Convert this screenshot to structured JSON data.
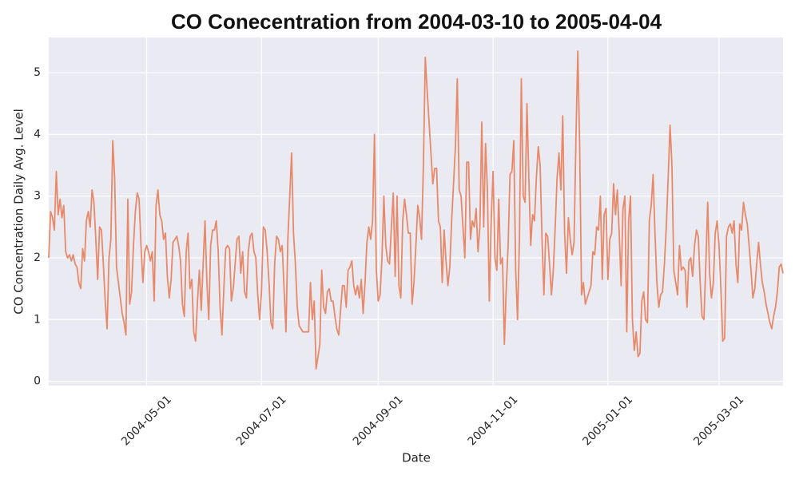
{
  "chart_data": {
    "type": "line",
    "title": "CO Conecentration from 2004-03-10 to 2005-04-04",
    "xlabel": "Date",
    "ylabel": "CO Concentration Daily Avg. Level",
    "color": "#e8896a",
    "grid": true,
    "xlim": [
      "2004-03-10",
      "2005-04-04"
    ],
    "xticks": [
      "2004-05-01",
      "2004-07-01",
      "2004-09-01",
      "2004-11-01",
      "2005-01-01",
      "2005-03-01"
    ],
    "ylim": [
      -0.07,
      5.57
    ],
    "yticks": [
      0,
      1,
      2,
      3,
      4,
      5
    ],
    "x": [
      "2004-03-10",
      "2004-03-11",
      "2004-03-12",
      "2004-03-13",
      "2004-03-14",
      "2004-03-15",
      "2004-03-16",
      "2004-03-17",
      "2004-03-18",
      "2004-03-19",
      "2004-03-20",
      "2004-03-21",
      "2004-03-22",
      "2004-03-23",
      "2004-03-24",
      "2004-03-25",
      "2004-03-26",
      "2004-03-27",
      "2004-03-28",
      "2004-03-29",
      "2004-03-30",
      "2004-03-31",
      "2004-04-01",
      "2004-04-02",
      "2004-04-03",
      "2004-04-04",
      "2004-04-05",
      "2004-04-06",
      "2004-04-07",
      "2004-04-08",
      "2004-04-09",
      "2004-04-10",
      "2004-04-11",
      "2004-04-12",
      "2004-04-13",
      "2004-04-14",
      "2004-04-15",
      "2004-04-16",
      "2004-04-17",
      "2004-04-18",
      "2004-04-19",
      "2004-04-20",
      "2004-04-21",
      "2004-04-22",
      "2004-04-23",
      "2004-04-24",
      "2004-04-25",
      "2004-04-26",
      "2004-04-27",
      "2004-04-28",
      "2004-04-29",
      "2004-04-30",
      "2004-05-01",
      "2004-05-02",
      "2004-05-03",
      "2004-05-04",
      "2004-05-05",
      "2004-05-06",
      "2004-05-07",
      "2004-05-08",
      "2004-05-09",
      "2004-05-10",
      "2004-05-11",
      "2004-05-12",
      "2004-05-13",
      "2004-05-14",
      "2004-05-15",
      "2004-05-16",
      "2004-05-17",
      "2004-05-18",
      "2004-05-19",
      "2004-05-20",
      "2004-05-21",
      "2004-05-22",
      "2004-05-23",
      "2004-05-24",
      "2004-05-25",
      "2004-05-26",
      "2004-05-27",
      "2004-05-28",
      "2004-05-29",
      "2004-05-30",
      "2004-05-31",
      "2004-06-01",
      "2004-06-02",
      "2004-06-03",
      "2004-06-04",
      "2004-06-05",
      "2004-06-06",
      "2004-06-07",
      "2004-06-08",
      "2004-06-09",
      "2004-06-10",
      "2004-06-11",
      "2004-06-12",
      "2004-06-13",
      "2004-06-14",
      "2004-06-15",
      "2004-06-16",
      "2004-06-17",
      "2004-06-18",
      "2004-06-19",
      "2004-06-20",
      "2004-06-21",
      "2004-06-22",
      "2004-06-23",
      "2004-06-24",
      "2004-06-25",
      "2004-06-26",
      "2004-06-27",
      "2004-06-28",
      "2004-06-29",
      "2004-06-30",
      "2004-07-01",
      "2004-07-02",
      "2004-07-03",
      "2004-07-04",
      "2004-07-05",
      "2004-07-06",
      "2004-07-07",
      "2004-07-08",
      "2004-07-09",
      "2004-07-10",
      "2004-07-11",
      "2004-07-12",
      "2004-07-13",
      "2004-07-14",
      "2004-07-15",
      "2004-07-16",
      "2004-07-17",
      "2004-07-18",
      "2004-07-19",
      "2004-07-20",
      "2004-07-21",
      "2004-07-22",
      "2004-07-23",
      "2004-07-24",
      "2004-07-25",
      "2004-07-26",
      "2004-07-27",
      "2004-07-28",
      "2004-07-29",
      "2004-07-30",
      "2004-07-31",
      "2004-08-01",
      "2004-08-02",
      "2004-08-03",
      "2004-08-04",
      "2004-08-05",
      "2004-08-06",
      "2004-08-07",
      "2004-08-08",
      "2004-08-09",
      "2004-08-10",
      "2004-08-11",
      "2004-08-12",
      "2004-08-13",
      "2004-08-14",
      "2004-08-15",
      "2004-08-16",
      "2004-08-17",
      "2004-08-18",
      "2004-08-19",
      "2004-08-20",
      "2004-08-21",
      "2004-08-22",
      "2004-08-23",
      "2004-08-24",
      "2004-08-25",
      "2004-08-26",
      "2004-08-27",
      "2004-08-28",
      "2004-08-29",
      "2004-08-30",
      "2004-08-31",
      "2004-09-01",
      "2004-09-02",
      "2004-09-03",
      "2004-09-04",
      "2004-09-05",
      "2004-09-06",
      "2004-09-07",
      "2004-09-08",
      "2004-09-09",
      "2004-09-10",
      "2004-09-11",
      "2004-09-12",
      "2004-09-13",
      "2004-09-14",
      "2004-09-15",
      "2004-09-16",
      "2004-09-17",
      "2004-09-18",
      "2004-09-19",
      "2004-09-20",
      "2004-09-21",
      "2004-09-22",
      "2004-09-23",
      "2004-09-24",
      "2004-09-25",
      "2004-09-26",
      "2004-09-27",
      "2004-09-28",
      "2004-09-29",
      "2004-09-30",
      "2004-10-01",
      "2004-10-02",
      "2004-10-03",
      "2004-10-04",
      "2004-10-05",
      "2004-10-06",
      "2004-10-07",
      "2004-10-08",
      "2004-10-09",
      "2004-10-10",
      "2004-10-11",
      "2004-10-12",
      "2004-10-13",
      "2004-10-14",
      "2004-10-15",
      "2004-10-16",
      "2004-10-17",
      "2004-10-18",
      "2004-10-19",
      "2004-10-20",
      "2004-10-21",
      "2004-10-22",
      "2004-10-23",
      "2004-10-24",
      "2004-10-25",
      "2004-10-26",
      "2004-10-27",
      "2004-10-28",
      "2004-10-29",
      "2004-10-30",
      "2004-10-31",
      "2004-11-01",
      "2004-11-02",
      "2004-11-03",
      "2004-11-04",
      "2004-11-05",
      "2004-11-06",
      "2004-11-07",
      "2004-11-08",
      "2004-11-09",
      "2004-11-10",
      "2004-11-11",
      "2004-11-12",
      "2004-11-13",
      "2004-11-14",
      "2004-11-15",
      "2004-11-16",
      "2004-11-17",
      "2004-11-18",
      "2004-11-19",
      "2004-11-20",
      "2004-11-21",
      "2004-11-22",
      "2004-11-23",
      "2004-11-24",
      "2004-11-25",
      "2004-11-26",
      "2004-11-27",
      "2004-11-28",
      "2004-11-29",
      "2004-11-30",
      "2004-12-01",
      "2004-12-02",
      "2004-12-03",
      "2004-12-04",
      "2004-12-05",
      "2004-12-06",
      "2004-12-07",
      "2004-12-08",
      "2004-12-09",
      "2004-12-10",
      "2004-12-11",
      "2004-12-12",
      "2004-12-13",
      "2004-12-14",
      "2004-12-15",
      "2004-12-16",
      "2004-12-17",
      "2004-12-18",
      "2004-12-19",
      "2004-12-20",
      "2004-12-21",
      "2004-12-22",
      "2004-12-23",
      "2004-12-24",
      "2004-12-25",
      "2004-12-26",
      "2004-12-27",
      "2004-12-28",
      "2004-12-29",
      "2004-12-30",
      "2004-12-31",
      "2005-01-01",
      "2005-01-02",
      "2005-01-03",
      "2005-01-04",
      "2005-01-05",
      "2005-01-06",
      "2005-01-07",
      "2005-01-08",
      "2005-01-09",
      "2005-01-10",
      "2005-01-11",
      "2005-01-12",
      "2005-01-13",
      "2005-01-14",
      "2005-01-15",
      "2005-01-16",
      "2005-01-17",
      "2005-01-18",
      "2005-01-19",
      "2005-01-20",
      "2005-01-21",
      "2005-01-22",
      "2005-01-23",
      "2005-01-24",
      "2005-01-25",
      "2005-01-26",
      "2005-01-27",
      "2005-01-28",
      "2005-01-29",
      "2005-01-30",
      "2005-01-31",
      "2005-02-01",
      "2005-02-02",
      "2005-02-03",
      "2005-02-04",
      "2005-02-05",
      "2005-02-06",
      "2005-02-07",
      "2005-02-08",
      "2005-02-09",
      "2005-02-10",
      "2005-02-11",
      "2005-02-12",
      "2005-02-13",
      "2005-02-14",
      "2005-02-15",
      "2005-02-16",
      "2005-02-17",
      "2005-02-18",
      "2005-02-19",
      "2005-02-20",
      "2005-02-21",
      "2005-02-22",
      "2005-02-23",
      "2005-02-24",
      "2005-02-25",
      "2005-02-26",
      "2005-02-27",
      "2005-02-28",
      "2005-03-01",
      "2005-03-02",
      "2005-03-03",
      "2005-03-04",
      "2005-03-05",
      "2005-03-06",
      "2005-03-07",
      "2005-03-08",
      "2005-03-09",
      "2005-03-10",
      "2005-03-11",
      "2005-03-12",
      "2005-03-13",
      "2005-03-14",
      "2005-03-15",
      "2005-03-16",
      "2005-03-17",
      "2005-03-18",
      "2005-03-19",
      "2005-03-20",
      "2005-03-21",
      "2005-03-22",
      "2005-03-23",
      "2005-03-24",
      "2005-03-25",
      "2005-03-26",
      "2005-03-27",
      "2005-03-28",
      "2005-03-29",
      "2005-03-30",
      "2005-03-31",
      "2005-04-01",
      "2005-04-02",
      "2005-04-03",
      "2005-04-04"
    ],
    "values": [
      2.0,
      2.75,
      2.65,
      2.45,
      3.4,
      2.7,
      2.95,
      2.65,
      2.85,
      2.1,
      2.0,
      2.05,
      1.95,
      2.05,
      1.9,
      1.85,
      1.6,
      1.5,
      2.15,
      1.95,
      2.6,
      2.75,
      2.5,
      3.1,
      2.9,
      2.3,
      1.65,
      2.5,
      2.45,
      1.9,
      1.3,
      0.85,
      2.0,
      2.3,
      3.9,
      3.3,
      1.85,
      1.6,
      1.35,
      1.1,
      0.95,
      0.75,
      2.95,
      1.25,
      1.45,
      2.2,
      2.75,
      3.05,
      2.95,
      2.2,
      1.6,
      2.1,
      2.2,
      2.1,
      1.95,
      2.1,
      1.3,
      2.85,
      3.1,
      2.7,
      2.6,
      2.3,
      2.4,
      1.7,
      1.35,
      1.65,
      2.25,
      2.3,
      2.35,
      2.2,
      1.95,
      1.25,
      1.05,
      2.1,
      2.4,
      1.5,
      1.65,
      0.8,
      0.65,
      1.3,
      1.8,
      1.15,
      1.9,
      2.6,
      1.6,
      1.0,
      2.2,
      2.45,
      2.45,
      2.6,
      2.1,
      1.2,
      0.75,
      1.5,
      2.15,
      2.2,
      2.15,
      1.3,
      1.5,
      1.9,
      2.3,
      2.35,
      1.75,
      2.1,
      1.45,
      1.35,
      2.1,
      2.35,
      2.4,
      2.1,
      2.0,
      1.4,
      1.0,
      1.45,
      2.5,
      2.45,
      2.1,
      1.6,
      0.95,
      0.85,
      1.9,
      2.35,
      2.3,
      2.1,
      2.2,
      1.5,
      0.8,
      2.3,
      3.0,
      3.7,
      2.4,
      1.9,
      1.2,
      0.9,
      0.85,
      0.8,
      0.8,
      0.8,
      0.8,
      1.6,
      1.0,
      1.3,
      0.2,
      0.4,
      0.6,
      1.8,
      1.2,
      1.1,
      1.45,
      1.5,
      1.3,
      1.3,
      1.05,
      0.85,
      0.75,
      1.15,
      1.55,
      1.55,
      1.2,
      1.8,
      1.85,
      1.95,
      1.55,
      1.4,
      1.55,
      1.35,
      1.65,
      1.1,
      1.6,
      2.25,
      2.5,
      2.3,
      2.6,
      4.0,
      1.8,
      1.3,
      1.4,
      2.0,
      3.0,
      2.2,
      1.95,
      1.9,
      2.5,
      3.05,
      1.7,
      3.0,
      1.55,
      1.35,
      2.6,
      2.95,
      2.7,
      2.4,
      2.4,
      1.25,
      1.6,
      2.2,
      2.85,
      2.65,
      2.3,
      3.5,
      5.25,
      4.7,
      4.2,
      3.7,
      3.2,
      3.45,
      3.45,
      2.6,
      2.5,
      1.6,
      2.45,
      1.95,
      1.55,
      1.85,
      2.6,
      3.2,
      3.8,
      4.9,
      3.1,
      3.0,
      2.5,
      2.0,
      3.55,
      3.55,
      2.3,
      2.6,
      2.5,
      2.8,
      2.1,
      2.5,
      4.2,
      2.5,
      3.85,
      3.1,
      1.3,
      2.6,
      3.4,
      2.0,
      1.8,
      2.95,
      1.9,
      2.0,
      0.6,
      1.5,
      2.2,
      3.35,
      3.4,
      3.9,
      1.8,
      1.0,
      2.3,
      4.9,
      3.0,
      2.9,
      4.5,
      3.3,
      2.2,
      2.7,
      2.6,
      3.3,
      3.8,
      3.5,
      2.3,
      1.4,
      2.4,
      2.35,
      1.9,
      1.4,
      1.8,
      2.5,
      3.3,
      3.7,
      3.1,
      4.3,
      2.4,
      1.75,
      2.65,
      2.3,
      2.05,
      2.25,
      3.9,
      5.35,
      3.8,
      1.4,
      1.6,
      1.25,
      1.35,
      1.45,
      1.55,
      2.1,
      2.05,
      2.5,
      2.45,
      3.0,
      1.65,
      2.7,
      2.8,
      1.65,
      2.3,
      2.4,
      3.2,
      2.7,
      3.1,
      2.4,
      1.55,
      2.8,
      3.0,
      0.8,
      2.6,
      3.0,
      1.0,
      0.5,
      0.8,
      0.4,
      0.45,
      1.3,
      1.45,
      1.0,
      0.95,
      2.6,
      2.85,
      3.35,
      2.4,
      1.6,
      1.2,
      1.4,
      1.45,
      1.9,
      2.5,
      3.3,
      4.15,
      3.5,
      1.8,
      1.6,
      1.4,
      2.2,
      1.8,
      1.85,
      1.8,
      1.2,
      1.95,
      2.0,
      1.7,
      2.2,
      2.45,
      2.35,
      1.6,
      1.05,
      1.0,
      1.9,
      2.9,
      1.75,
      1.35,
      1.6,
      2.4,
      2.6,
      2.2,
      1.5,
      0.65,
      0.7,
      2.35,
      2.5,
      2.55,
      2.4,
      2.6,
      1.9,
      1.6,
      2.55,
      2.45,
      2.9,
      2.7,
      2.55,
      2.2,
      1.8,
      1.35,
      1.5,
      1.9,
      2.25,
      1.9,
      1.6,
      1.45,
      1.25,
      1.1,
      0.95,
      0.85,
      1.05,
      1.2,
      1.45,
      1.85,
      1.9,
      1.75
    ]
  }
}
